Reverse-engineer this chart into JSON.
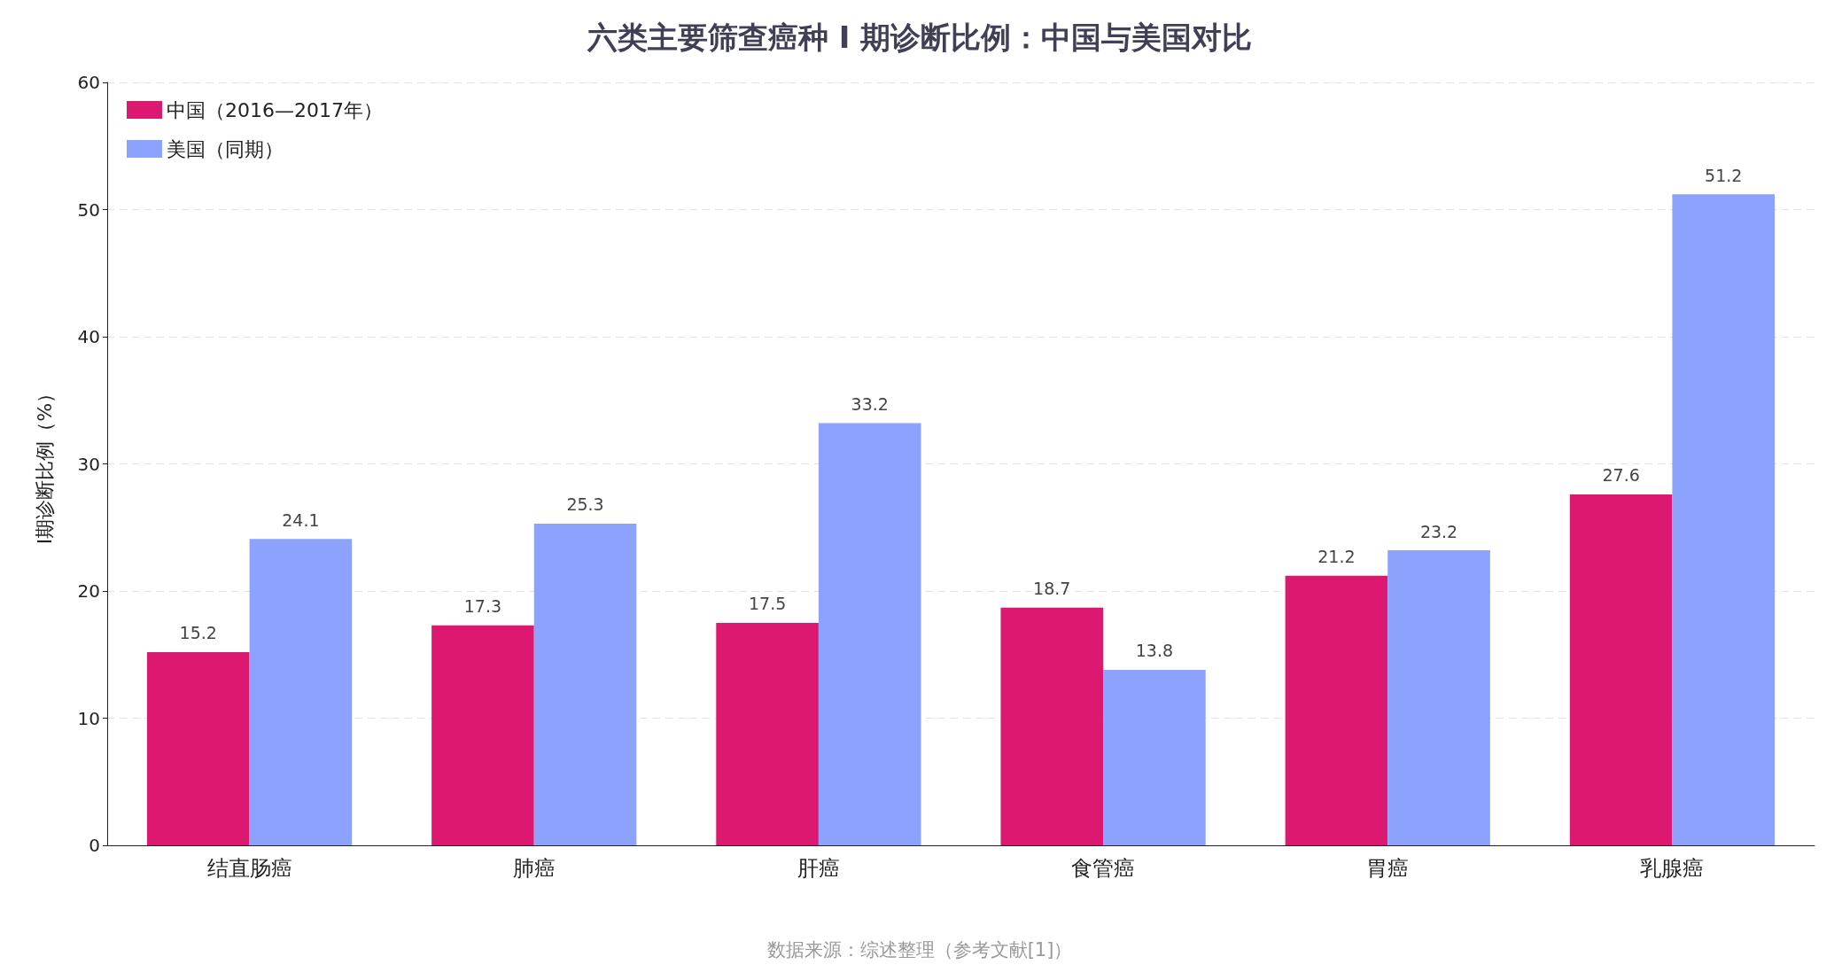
{
  "chart_data": {
    "type": "bar",
    "title": "六类主要筛查癌种 Ⅰ 期诊断比例：中国与美国对比",
    "ylabel": "Ⅰ期诊断比例（%）",
    "categories": [
      "结直肠癌",
      "肺癌",
      "肝癌",
      "食管癌",
      "胃癌",
      "乳腺癌"
    ],
    "series": [
      {
        "name": "中国（2016—2017年）",
        "color": "#dc1870",
        "values": [
          15.2,
          17.3,
          17.5,
          18.7,
          21.2,
          27.6
        ]
      },
      {
        "name": "美国（同期）",
        "color": "#8da2fd",
        "values": [
          24.1,
          25.3,
          33.2,
          13.8,
          23.2,
          51.2
        ]
      }
    ],
    "ylim": [
      0,
      60
    ],
    "yticks": [
      0,
      10,
      20,
      30,
      40,
      50,
      60
    ],
    "grid": "y",
    "legend": "top left",
    "data_labels": true,
    "annotations": [
      "数据来源：综述整理（参考文献[1]）"
    ]
  }
}
